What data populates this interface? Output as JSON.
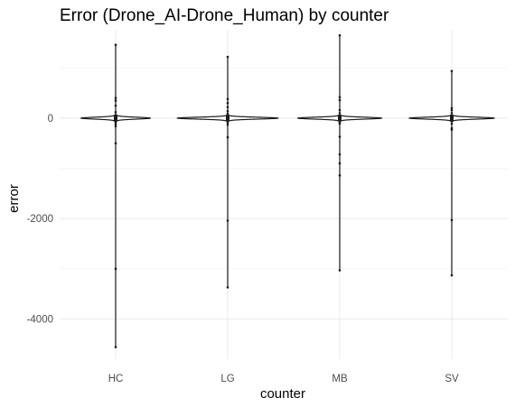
{
  "chart_data": {
    "type": "violin",
    "title": "Error (Drone_AI-Drone_Human) by counter",
    "xlabel": "counter",
    "ylabel": "error",
    "categories": [
      "HC",
      "LG",
      "MB",
      "SV"
    ],
    "ylim": [
      -4800,
      1760
    ],
    "y_ticks": [
      -4000,
      -2000,
      0
    ],
    "y_tick_labels": [
      "-4000",
      "-2000",
      "0"
    ],
    "grid": "on",
    "legend": "none",
    "series": [
      {
        "category": "HC",
        "max": 1460,
        "min": -4560,
        "violin_half_width": 0.6,
        "points": [
          1460,
          400,
          350,
          250,
          120,
          60,
          -30,
          -80,
          -120,
          -160,
          -500,
          -3000,
          -4560
        ]
      },
      {
        "category": "LG",
        "max": 1220,
        "min": -3370,
        "violin_half_width": 0.88,
        "points": [
          1220,
          380,
          300,
          220,
          140,
          90,
          40,
          -40,
          -90,
          -130,
          -380,
          -2040,
          -3370
        ]
      },
      {
        "category": "MB",
        "max": 1650,
        "min": -3030,
        "violin_half_width": 0.73,
        "points": [
          1650,
          420,
          360,
          160,
          100,
          -40,
          -90,
          -110,
          -370,
          -720,
          -900,
          -1140,
          -3030
        ]
      },
      {
        "category": "SV",
        "max": 940,
        "min": -3130,
        "violin_half_width": 0.74,
        "points": [
          940,
          200,
          160,
          100,
          40,
          -60,
          -110,
          -200,
          -230,
          -2030,
          -3130
        ]
      }
    ]
  }
}
